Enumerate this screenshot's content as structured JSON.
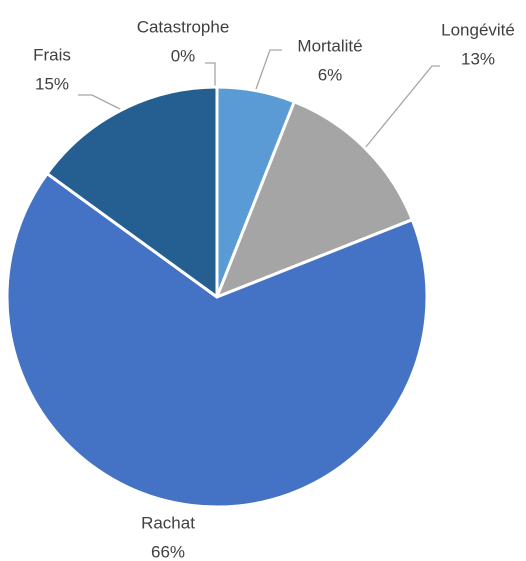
{
  "chart_data": {
    "type": "pie",
    "categories": [
      "Catastrophe",
      "Mortalité",
      "Longévité",
      "Rachat",
      "Frais"
    ],
    "values": [
      0,
      6,
      13,
      66,
      15
    ],
    "value_labels": [
      "0%",
      "6%",
      "13%",
      "66%",
      "15%"
    ],
    "colors": [
      "#ed7d31",
      "#5b9bd5",
      "#a5a5a5",
      "#4472c4",
      "#255e91"
    ]
  }
}
